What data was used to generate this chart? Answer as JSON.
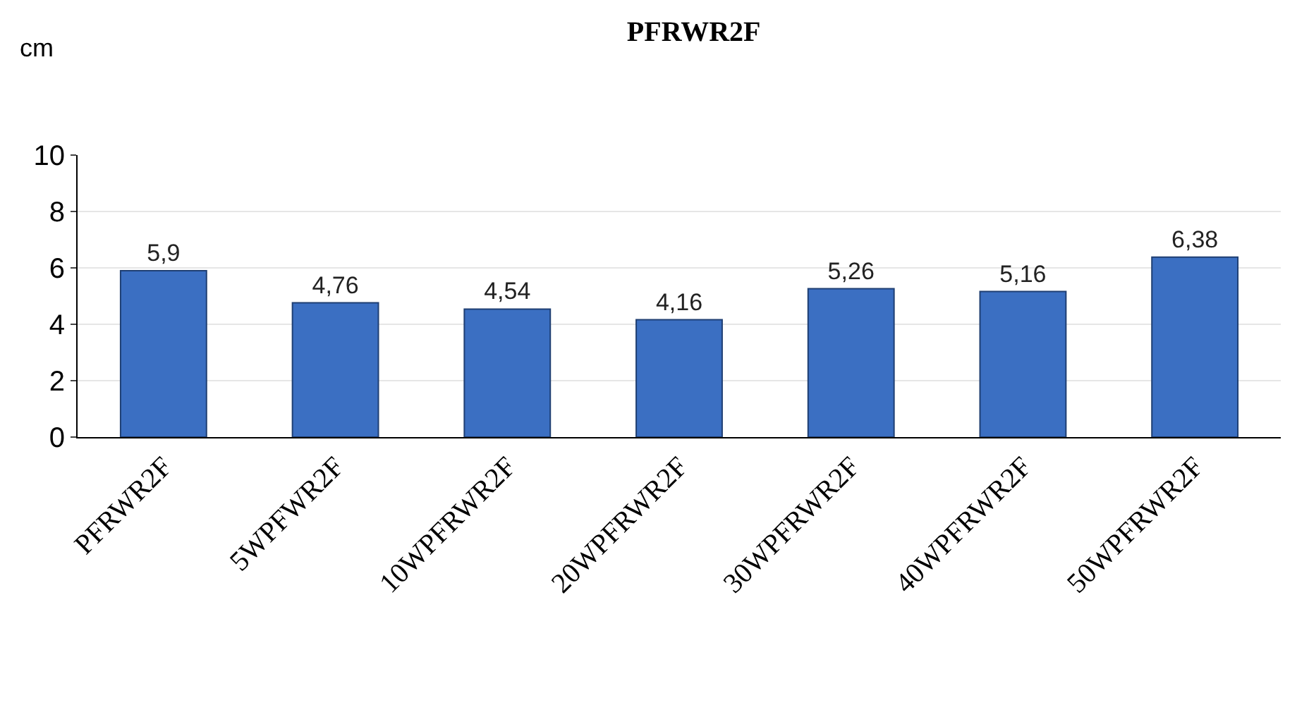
{
  "chart_data": {
    "type": "bar",
    "title": "PFRWR2F",
    "ylabel": "cm",
    "categories": [
      "PFRWR2F",
      "5WPFWR2F",
      "10WPFRWR2F",
      "20WPFRWR2F",
      "30WPFRWR2F",
      "40WPFRWR2F",
      "50WPFRWR2F"
    ],
    "values": [
      5.9,
      4.76,
      4.54,
      4.16,
      5.26,
      5.16,
      6.38
    ],
    "value_labels": [
      "5,9",
      "4,76",
      "4,54",
      "4,16",
      "5,26",
      "5,16",
      "6,38"
    ],
    "color": "#3b6fc2",
    "ylim": [
      0,
      10
    ],
    "yticks": [
      0,
      2,
      4,
      6,
      8,
      10
    ],
    "grid": "y",
    "legend": false
  }
}
